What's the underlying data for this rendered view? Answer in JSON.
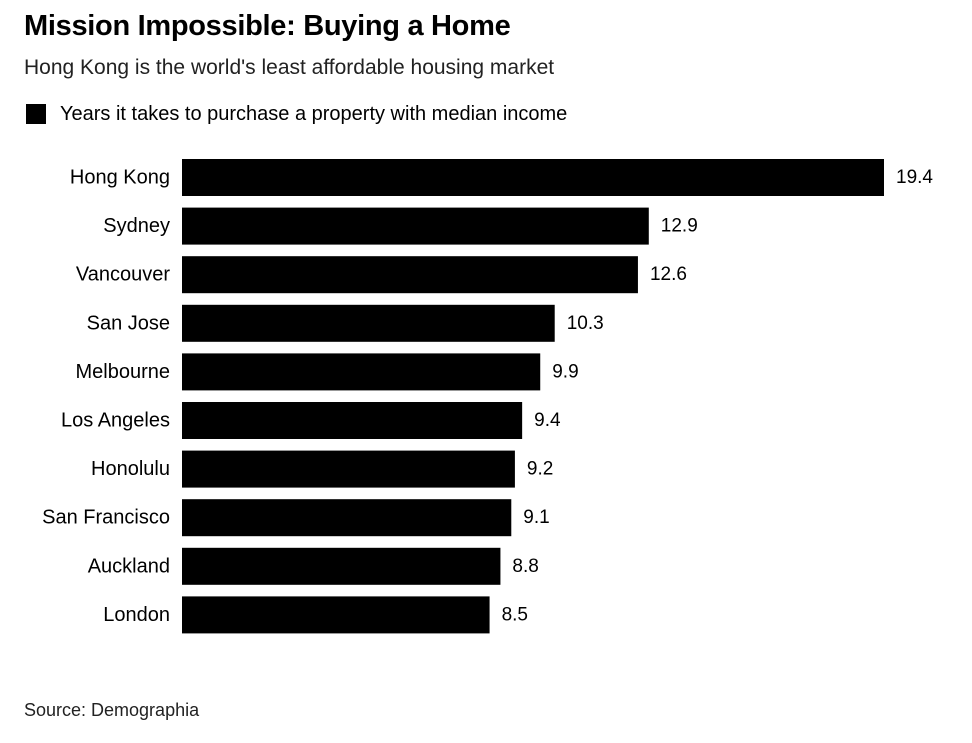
{
  "header": {
    "title": "Mission Impossible: Buying a Home",
    "subtitle": "Hong Kong is the world's least affordable housing market"
  },
  "legend": {
    "label": "Years it takes to purchase a property with median income"
  },
  "footer": {
    "source": "Source: Demographia"
  },
  "colors": {
    "bar": "#000000",
    "text": "#000000"
  },
  "chart_data": {
    "type": "bar",
    "orientation": "horizontal",
    "categories": [
      "Hong Kong",
      "Sydney",
      "Vancouver",
      "San Jose",
      "Melbourne",
      "Los Angeles",
      "Honolulu",
      "San Francisco",
      "Auckland",
      "London"
    ],
    "series": [
      {
        "name": "Years it takes to purchase a property with median income",
        "values": [
          19.4,
          12.9,
          12.6,
          10.3,
          9.9,
          9.4,
          9.2,
          9.1,
          8.8,
          8.5
        ]
      }
    ],
    "value_labels": [
      "19.4",
      "12.9",
      "12.6",
      "10.3",
      "9.9",
      "9.4",
      "9.2",
      "9.1",
      "8.8",
      "8.5"
    ],
    "title": "Mission Impossible: Buying a Home",
    "subtitle": "Hong Kong is the world's least affordable housing market",
    "xlim": [
      0,
      19.4
    ],
    "grid": false,
    "legend_position": "top-left"
  }
}
